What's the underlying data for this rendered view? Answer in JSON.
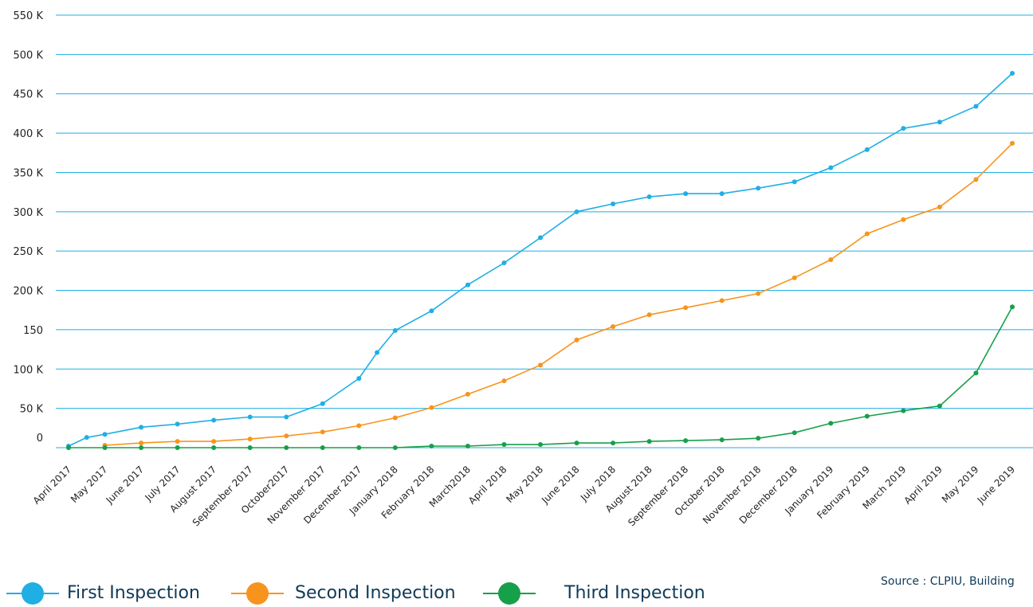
{
  "chart_data": {
    "type": "line",
    "categories": [
      "April 2017",
      "May 2017",
      "June 2017",
      "July 2017",
      "August 2017",
      "September 2017",
      "October2017",
      "November 2017",
      "December 2017",
      "January 2018",
      "February 2018",
      "March2018",
      "April 2018",
      "May 2018",
      "June 2018",
      "July 2018",
      "August 2018",
      "September 2018",
      "October 2018",
      "November 2018",
      "December 2018",
      "January 2019",
      "February 2019",
      "March 2019",
      "April 2019",
      "May 2019",
      "June 2019"
    ],
    "y_tick_labels": [
      "0",
      "50 K",
      "100 K",
      "150",
      "200 K",
      "250 K",
      "300 K",
      "350 K",
      "400 K",
      "450 K",
      "500 K",
      "550 K"
    ],
    "ylim": [
      0,
      550000
    ],
    "grid": true,
    "series": [
      {
        "name": "First Inspection",
        "color": "#1fafe5",
        "points": [
          {
            "x": "April 2017",
            "y": 2000
          },
          {
            "x": "",
            "y": 13000
          },
          {
            "x": "May 2017",
            "y": 17000
          },
          {
            "x": "June 2017",
            "y": 26000
          },
          {
            "x": "July 2017",
            "y": 30000
          },
          {
            "x": "August 2017",
            "y": 35000
          },
          {
            "x": "September 2017",
            "y": 39000
          },
          {
            "x": "October2017",
            "y": 39000
          },
          {
            "x": "November 2017",
            "y": 56000
          },
          {
            "x": "December 2017",
            "y": 88000
          },
          {
            "x": "",
            "y": 121000
          },
          {
            "x": "January 2018",
            "y": 149000
          },
          {
            "x": "February 2018",
            "y": 174000
          },
          {
            "x": "March2018",
            "y": 207000
          },
          {
            "x": "April 2018",
            "y": 235000
          },
          {
            "x": "May 2018",
            "y": 267000
          },
          {
            "x": "June 2018",
            "y": 300000
          },
          {
            "x": "July 2018",
            "y": 310000
          },
          {
            "x": "August 2018",
            "y": 319000
          },
          {
            "x": "September 2018",
            "y": 323000
          },
          {
            "x": "October 2018",
            "y": 323000
          },
          {
            "x": "November 2018",
            "y": 330000
          },
          {
            "x": "December 2018",
            "y": 338000
          },
          {
            "x": "January 2019",
            "y": 356000
          },
          {
            "x": "February 2019",
            "y": 379000
          },
          {
            "x": "March 2019",
            "y": 406000
          },
          {
            "x": "April 2019",
            "y": 414000
          },
          {
            "x": "May 2019",
            "y": 434000
          },
          {
            "x": "June 2019",
            "y": 476000
          }
        ]
      },
      {
        "name": "Second Inspection",
        "color": "#f7941d",
        "points": [
          {
            "x": "May 2017",
            "y": 3000
          },
          {
            "x": "June 2017",
            "y": 6000
          },
          {
            "x": "July 2017",
            "y": 8000
          },
          {
            "x": "August 2017",
            "y": 8000
          },
          {
            "x": "September 2017",
            "y": 11000
          },
          {
            "x": "October2017",
            "y": 15000
          },
          {
            "x": "November 2017",
            "y": 20000
          },
          {
            "x": "December 2017",
            "y": 28000
          },
          {
            "x": "January 2018",
            "y": 38000
          },
          {
            "x": "February 2018",
            "y": 51000
          },
          {
            "x": "March2018",
            "y": 68000
          },
          {
            "x": "April 2018",
            "y": 85000
          },
          {
            "x": "May 2018",
            "y": 105000
          },
          {
            "x": "June 2018",
            "y": 137000
          },
          {
            "x": "July 2018",
            "y": 154000
          },
          {
            "x": "August 2018",
            "y": 169000
          },
          {
            "x": "September 2018",
            "y": 178000
          },
          {
            "x": "October 2018",
            "y": 187000
          },
          {
            "x": "November 2018",
            "y": 196000
          },
          {
            "x": "December 2018",
            "y": 216000
          },
          {
            "x": "January 2019",
            "y": 239000
          },
          {
            "x": "February 2019",
            "y": 272000
          },
          {
            "x": "March 2019",
            "y": 290000
          },
          {
            "x": "April 2019",
            "y": 306000
          },
          {
            "x": "May 2019",
            "y": 341000
          },
          {
            "x": "June 2019",
            "y": 387000
          }
        ]
      },
      {
        "name": "Third Inspection",
        "color": "#16a04a",
        "points": [
          {
            "x": "April 2017",
            "y": 0
          },
          {
            "x": "May 2017",
            "y": 0
          },
          {
            "x": "June 2017",
            "y": 0
          },
          {
            "x": "July 2017",
            "y": 0
          },
          {
            "x": "August 2017",
            "y": 0
          },
          {
            "x": "September 2017",
            "y": 0
          },
          {
            "x": "October2017",
            "y": 0
          },
          {
            "x": "November 2017",
            "y": 0
          },
          {
            "x": "December 2017",
            "y": 0
          },
          {
            "x": "January 2018",
            "y": 0
          },
          {
            "x": "February 2018",
            "y": 2000
          },
          {
            "x": "March2018",
            "y": 2000
          },
          {
            "x": "April 2018",
            "y": 4000
          },
          {
            "x": "May 2018",
            "y": 4000
          },
          {
            "x": "June 2018",
            "y": 6000
          },
          {
            "x": "July 2018",
            "y": 6000
          },
          {
            "x": "August 2018",
            "y": 8000
          },
          {
            "x": "September 2018",
            "y": 9000
          },
          {
            "x": "October 2018",
            "y": 10000
          },
          {
            "x": "November 2018",
            "y": 12000
          },
          {
            "x": "December 2018",
            "y": 19000
          },
          {
            "x": "January 2019",
            "y": 31000
          },
          {
            "x": "February 2019",
            "y": 40000
          },
          {
            "x": "March 2019",
            "y": 47000
          },
          {
            "x": "April 2019",
            "y": 53000
          },
          {
            "x": "May 2019",
            "y": 95000
          },
          {
            "x": "June 2019",
            "y": 179000
          }
        ]
      }
    ]
  },
  "legend": {
    "first_label": "First Inspection",
    "second_label": "Second Inspection",
    "third_label": "Third Inspection"
  },
  "source_text": "Source : CLPIU, Building"
}
